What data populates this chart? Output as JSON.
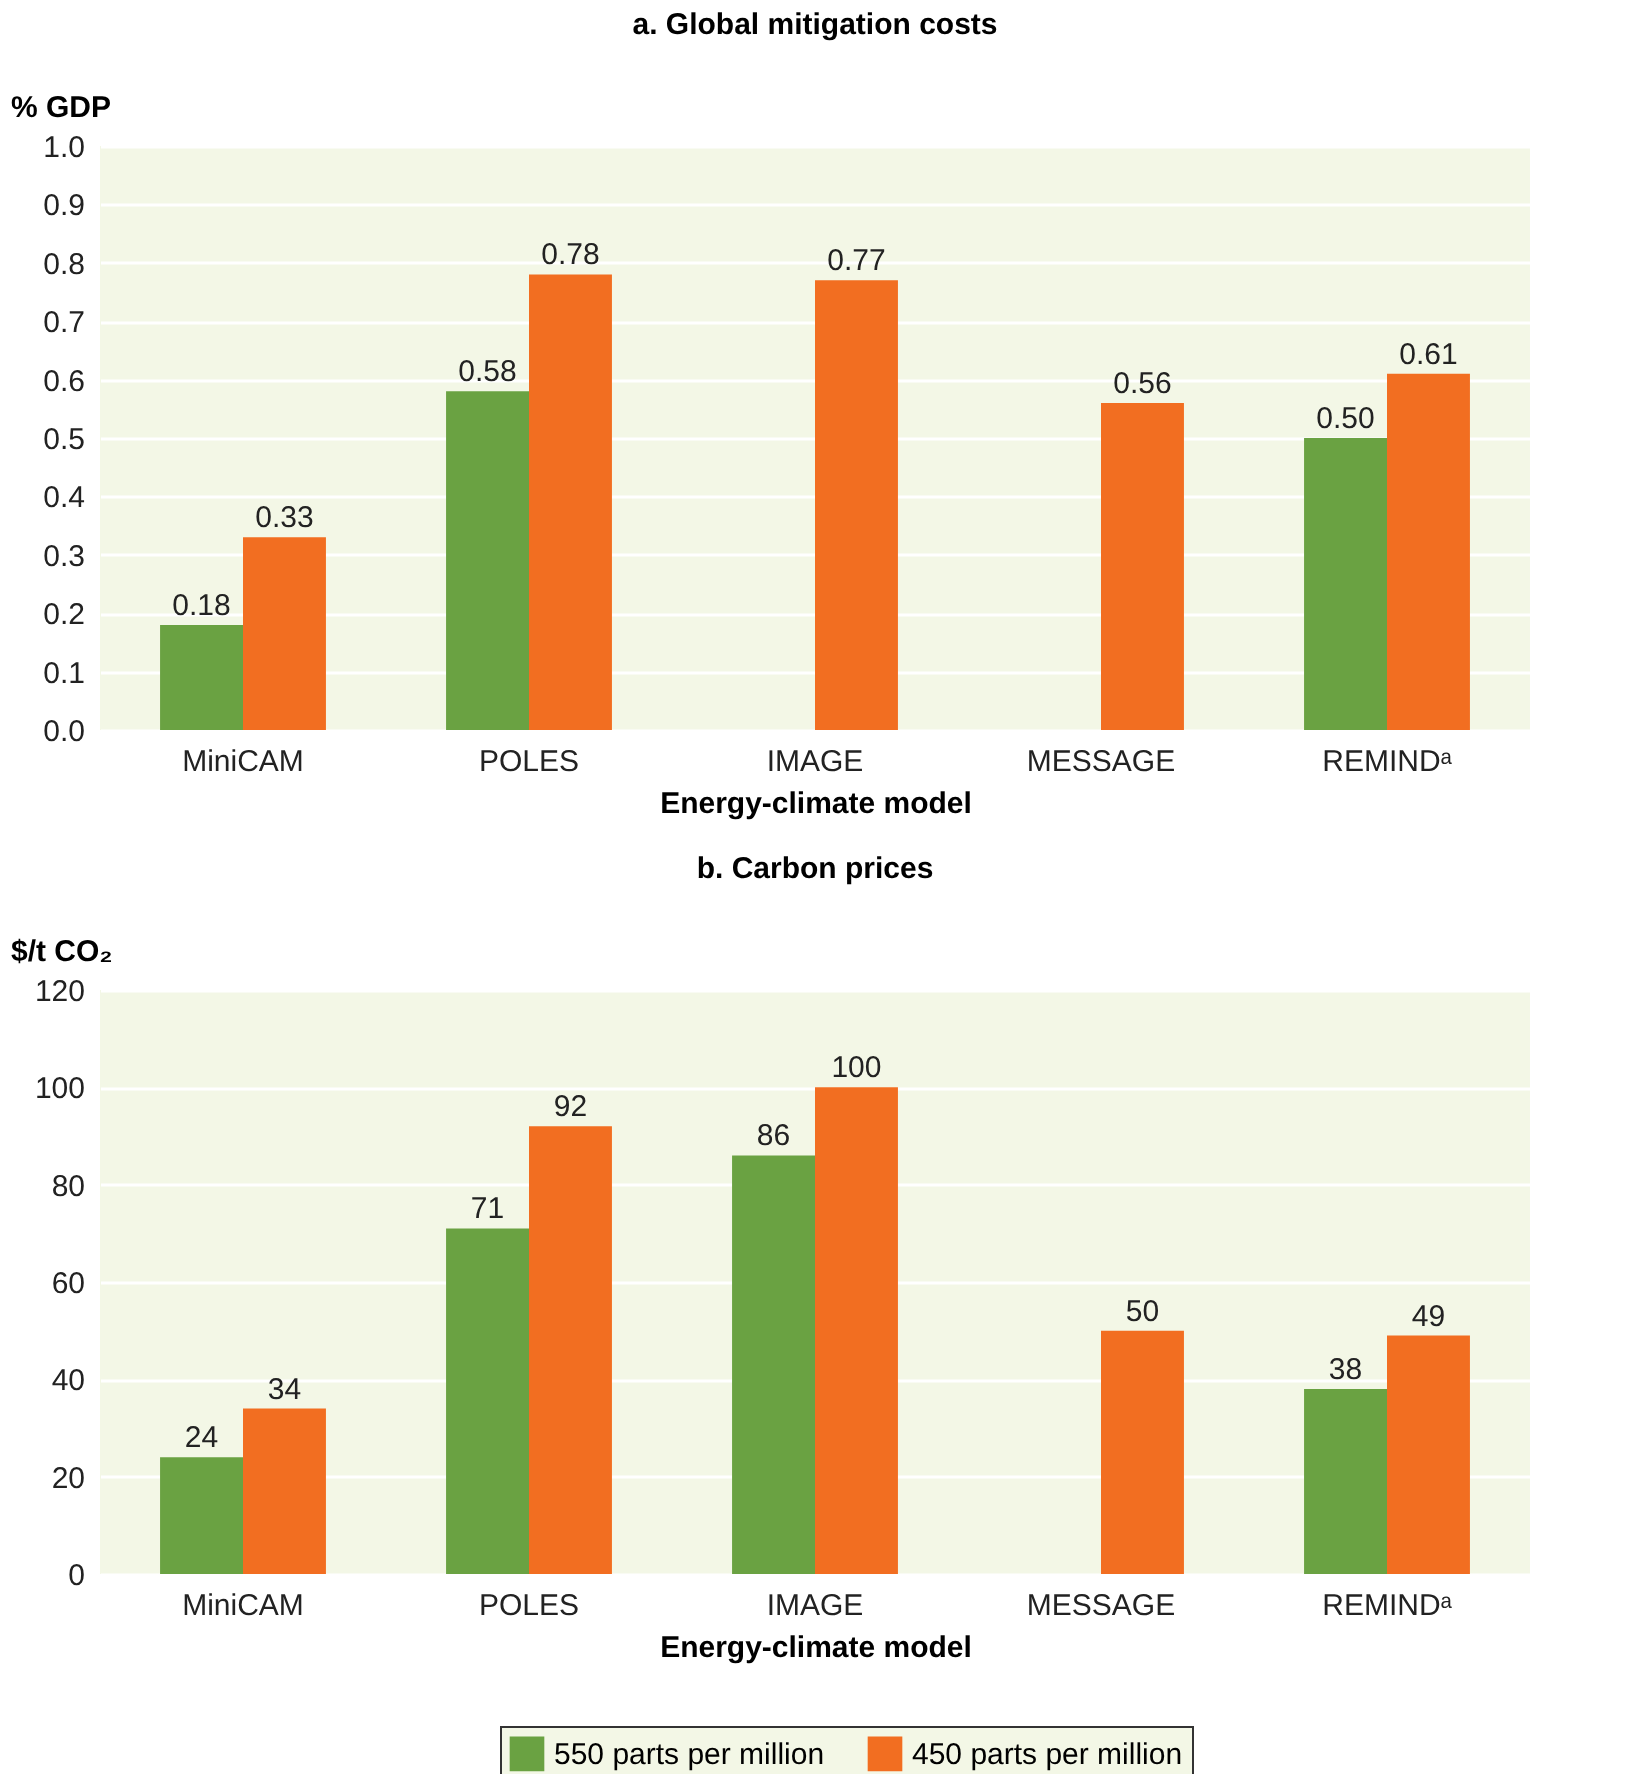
{
  "chart_data": [
    {
      "type": "bar",
      "title": "a. Global mitigation costs",
      "xlabel": "Energy-climate model",
      "ylabel": "% GDP",
      "categories": [
        "MiniCAM",
        "POLES",
        "IMAGE",
        "MESSAGE",
        "REMINDᵃ"
      ],
      "series": [
        {
          "color": "#6aa242",
          "values": [
            0.18,
            0.58,
            null,
            null,
            0.5
          ],
          "value_labels": [
            "0.18",
            "0.58",
            null,
            null,
            "0.50"
          ]
        },
        {
          "color": "#f26e21",
          "values": [
            0.33,
            0.78,
            0.77,
            0.56,
            0.61
          ],
          "value_labels": [
            "0.33",
            "0.78",
            "0.77",
            "0.56",
            "0.61"
          ]
        }
      ],
      "ylim": [
        0,
        1
      ],
      "yticks": [
        {
          "value": 0,
          "label": "0.0"
        },
        0.1,
        0.2,
        0.3,
        0.4,
        0.5,
        0.6,
        0.7,
        0.8,
        0.9,
        {
          "value": 1,
          "label": "1.0"
        }
      ],
      "grid": "y",
      "legend": false
    },
    {
      "type": "bar",
      "title": "b. Carbon prices",
      "xlabel": "Energy-climate model",
      "ylabel": "$/t CO₂",
      "categories": [
        "MiniCAM",
        "POLES",
        "IMAGE",
        "MESSAGE",
        "REMINDᵃ"
      ],
      "series": [
        {
          "name": "550 parts per million",
          "color": "#6aa242",
          "values": [
            24,
            71,
            86,
            null,
            38
          ],
          "value_labels": [
            "24",
            "71",
            "86",
            null,
            "38"
          ]
        },
        {
          "name": "450 parts per million",
          "color": "#f26e21",
          "values": [
            34,
            92,
            100,
            50,
            49
          ],
          "value_labels": [
            "34",
            "92",
            "100",
            "50",
            "49"
          ]
        }
      ],
      "ylim": [
        0,
        120
      ],
      "yticks": [
        0,
        20,
        40,
        60,
        80,
        100,
        120
      ],
      "grid": "y",
      "legend": "bottom"
    }
  ]
}
